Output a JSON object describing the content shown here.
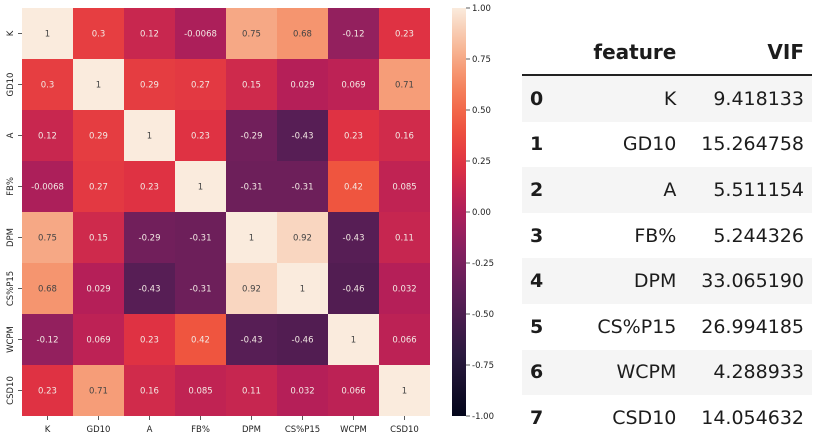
{
  "chart_data": [
    {
      "type": "heatmap",
      "labels": [
        "K",
        "GD10",
        "A",
        "FB%",
        "DPM",
        "CS%P15",
        "WCPM",
        "CSD10"
      ],
      "matrix": [
        [
          "1",
          "0.3",
          "0.12",
          "-0.0068",
          "0.75",
          "0.68",
          "-0.12",
          "0.23"
        ],
        [
          "0.3",
          "1",
          "0.29",
          "0.27",
          "0.15",
          "0.029",
          "0.069",
          "0.71"
        ],
        [
          "0.12",
          "0.29",
          "1",
          "0.23",
          "-0.29",
          "-0.43",
          "0.23",
          "0.16"
        ],
        [
          "-0.0068",
          "0.27",
          "0.23",
          "1",
          "-0.31",
          "-0.31",
          "0.42",
          "0.085"
        ],
        [
          "0.75",
          "0.15",
          "-0.29",
          "-0.31",
          "1",
          "0.92",
          "-0.43",
          "0.11"
        ],
        [
          "0.68",
          "0.029",
          "-0.43",
          "-0.31",
          "0.92",
          "1",
          "-0.46",
          "0.032"
        ],
        [
          "-0.12",
          "0.069",
          "0.23",
          "0.42",
          "-0.43",
          "-0.46",
          "1",
          "0.066"
        ],
        [
          "0.23",
          "0.71",
          "0.16",
          "0.085",
          "0.11",
          "0.032",
          "0.066",
          "1"
        ]
      ],
      "colorbar_ticks": [
        "1.00",
        "0.75",
        "0.50",
        "0.25",
        "0.00",
        "-0.25",
        "-0.50",
        "-0.75",
        "-1.00"
      ],
      "vmin": -1,
      "vmax": 1,
      "colors": {
        "high": "#faebdd",
        "mid": "#e13342",
        "low": "#03051a"
      }
    },
    {
      "type": "table",
      "columns": [
        "",
        "feature",
        "VIF"
      ],
      "rows": [
        {
          "index": "0",
          "feature": "K",
          "vif": "9.418133"
        },
        {
          "index": "1",
          "feature": "GD10",
          "vif": "15.264758"
        },
        {
          "index": "2",
          "feature": "A",
          "vif": "5.511154"
        },
        {
          "index": "3",
          "feature": "FB%",
          "vif": "5.244326"
        },
        {
          "index": "4",
          "feature": "DPM",
          "vif": "33.065190"
        },
        {
          "index": "5",
          "feature": "CS%P15",
          "vif": "26.994185"
        },
        {
          "index": "6",
          "feature": "WCPM",
          "vif": "4.288933"
        },
        {
          "index": "7",
          "feature": "CSD10",
          "vif": "14.054632"
        }
      ]
    }
  ]
}
